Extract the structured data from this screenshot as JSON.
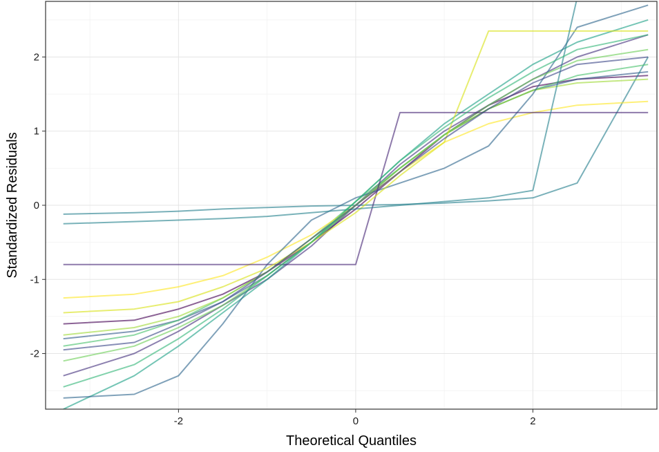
{
  "chart_data": {
    "type": "line",
    "title": "",
    "xlabel": "Theoretical Quantiles",
    "ylabel": "Standardized Residuals",
    "xlim": [
      -3.5,
      3.4
    ],
    "ylim": [
      -2.75,
      2.75
    ],
    "x_ticks": [
      -2,
      0,
      2
    ],
    "x_tick_labels": [
      "-2",
      "0",
      "2"
    ],
    "y_ticks": [
      -2,
      -1,
      0,
      1,
      2
    ],
    "y_tick_labels": [
      "-2",
      "-1",
      "0",
      "1",
      "2"
    ],
    "grid": true,
    "legend": "none",
    "description_of_series": "Quantile-quantile traces of standardized residuals versus theoretical normal quantiles; many series, colored along a viridis palette (purple to yellow).",
    "series": [
      {
        "name": "s1",
        "color": "#440154",
        "x": [
          -3.3,
          -2.5,
          -2,
          -1.5,
          -1,
          -0.5,
          0,
          0.5,
          1,
          1.5,
          2,
          2.5,
          3.3
        ],
        "y": [
          -1.6,
          -1.55,
          -1.4,
          -1.2,
          -0.9,
          -0.5,
          -0.05,
          0.45,
          0.95,
          1.35,
          1.6,
          1.7,
          1.75
        ]
      },
      {
        "name": "s2",
        "color": "#46327e",
        "x": [
          -3.3,
          -2.5,
          -2,
          -1.5,
          -1,
          -0.5,
          0,
          0.5,
          1,
          1.5,
          2,
          2.5,
          3.3
        ],
        "y": [
          -2.3,
          -2.0,
          -1.7,
          -1.35,
          -1.0,
          -0.55,
          0.0,
          0.55,
          1.0,
          1.35,
          1.7,
          2.0,
          2.3
        ]
      },
      {
        "name": "s3",
        "color": "#365c8d",
        "x": [
          -3.3,
          -2.5,
          -2,
          -1.5,
          -1,
          -0.5,
          0,
          0.5,
          1,
          1.5,
          2,
          2.5,
          3.3
        ],
        "y": [
          -1.8,
          -1.7,
          -1.55,
          -1.3,
          -0.95,
          -0.5,
          0.0,
          0.5,
          0.95,
          1.3,
          1.55,
          1.7,
          1.8
        ]
      },
      {
        "name": "s4",
        "color": "#277f8e",
        "x": [
          -3.3,
          -2.5,
          -2,
          -1.5,
          -1,
          -0.5,
          0,
          0.5,
          1,
          1.5,
          2,
          2.5,
          3.3
        ],
        "y": [
          -0.12,
          -0.1,
          -0.08,
          -0.05,
          -0.03,
          -0.01,
          0.0,
          0.01,
          0.03,
          0.06,
          0.1,
          0.3,
          2.0
        ]
      },
      {
        "name": "s5",
        "color": "#1fa187",
        "x": [
          -3.3,
          -2.5,
          -2,
          -1.5,
          -1,
          -0.5,
          0,
          0.5,
          1,
          1.5,
          2,
          2.5,
          3.3
        ],
        "y": [
          -2.75,
          -2.3,
          -1.9,
          -1.45,
          -1.0,
          -0.5,
          0.05,
          0.6,
          1.1,
          1.5,
          1.9,
          2.2,
          2.5
        ]
      },
      {
        "name": "s6",
        "color": "#4ac16d",
        "x": [
          -3.3,
          -2.5,
          -2,
          -1.5,
          -1,
          -0.5,
          0,
          0.5,
          1,
          1.5,
          2,
          2.5,
          3.3
        ],
        "y": [
          -1.9,
          -1.75,
          -1.55,
          -1.25,
          -0.9,
          -0.45,
          0.05,
          0.5,
          0.95,
          1.3,
          1.55,
          1.75,
          1.9
        ]
      },
      {
        "name": "s7",
        "color": "#a0da39",
        "x": [
          -3.3,
          -2.5,
          -2,
          -1.5,
          -1,
          -0.5,
          0,
          0.5,
          1,
          1.5,
          2,
          2.5,
          3.3
        ],
        "y": [
          -1.75,
          -1.65,
          -1.5,
          -1.25,
          -0.9,
          -0.45,
          0.0,
          0.5,
          0.95,
          1.3,
          1.55,
          1.65,
          1.7
        ]
      },
      {
        "name": "s8",
        "color": "#fde725",
        "x": [
          -3.3,
          -2.5,
          -2,
          -1.5,
          -1,
          -0.5,
          0,
          0.5,
          1,
          1.5,
          2,
          2.5,
          3.3
        ],
        "y": [
          -1.25,
          -1.2,
          -1.1,
          -0.95,
          -0.7,
          -0.4,
          0.0,
          0.45,
          0.85,
          1.1,
          1.25,
          1.35,
          1.4
        ]
      },
      {
        "name": "s9",
        "color": "#31688e",
        "x": [
          -3.3,
          -2.5,
          -2,
          -1.5,
          -1,
          -0.5,
          0,
          0.5,
          1,
          1.5,
          2,
          2.5,
          3.3
        ],
        "y": [
          -2.6,
          -2.55,
          -2.3,
          -1.6,
          -0.8,
          -0.2,
          0.1,
          0.3,
          0.5,
          0.8,
          1.5,
          2.4,
          2.7
        ]
      },
      {
        "name": "s10",
        "color": "#6ece58",
        "x": [
          -3.3,
          -2.5,
          -2,
          -1.5,
          -1,
          -0.5,
          0,
          0.5,
          1,
          1.5,
          2,
          2.5,
          3.3
        ],
        "y": [
          -2.1,
          -1.9,
          -1.65,
          -1.35,
          -0.95,
          -0.5,
          0.0,
          0.5,
          0.95,
          1.35,
          1.7,
          1.95,
          2.1
        ]
      },
      {
        "name": "s11",
        "color": "#482878",
        "x": [
          -3.3,
          -2.5,
          -2,
          -1.5,
          -1,
          -0.5,
          0,
          0.5,
          1,
          1.5,
          2,
          2.5,
          3.3
        ],
        "y": [
          -0.8,
          -0.8,
          -0.8,
          -0.8,
          -0.8,
          -0.8,
          -0.8,
          1.25,
          1.25,
          1.25,
          1.25,
          1.25,
          1.25
        ]
      },
      {
        "name": "s12",
        "color": "#d8e219",
        "x": [
          -3.3,
          -2.5,
          -2,
          -1.5,
          -1,
          -0.5,
          0,
          0.5,
          1,
          1.5,
          2,
          2.5,
          3.3
        ],
        "y": [
          -1.45,
          -1.4,
          -1.3,
          -1.1,
          -0.85,
          -0.5,
          -0.1,
          0.4,
          0.85,
          2.35,
          2.35,
          2.35,
          2.35
        ]
      },
      {
        "name": "s13",
        "color": "#26828e",
        "x": [
          -3.3,
          -2.5,
          -2,
          -1.5,
          -1,
          -0.5,
          0,
          0.5,
          1,
          1.5,
          2,
          2.5,
          3.3
        ],
        "y": [
          -0.25,
          -0.22,
          -0.2,
          -0.18,
          -0.15,
          -0.1,
          -0.05,
          0.0,
          0.05,
          0.1,
          0.2,
          2.8,
          2.8
        ]
      },
      {
        "name": "s14",
        "color": "#3e4989",
        "x": [
          -3.3,
          -2.5,
          -2,
          -1.5,
          -1,
          -0.5,
          0,
          0.5,
          1,
          1.5,
          2,
          2.5,
          3.3
        ],
        "y": [
          -1.95,
          -1.85,
          -1.6,
          -1.3,
          -0.9,
          -0.45,
          0.0,
          0.45,
          0.9,
          1.3,
          1.65,
          1.9,
          2.0
        ]
      },
      {
        "name": "s15",
        "color": "#35b779",
        "x": [
          -3.3,
          -2.5,
          -2,
          -1.5,
          -1,
          -0.5,
          0,
          0.5,
          1,
          1.5,
          2,
          2.5,
          3.3
        ],
        "y": [
          -2.45,
          -2.15,
          -1.8,
          -1.4,
          -0.95,
          -0.5,
          0.05,
          0.6,
          1.05,
          1.45,
          1.8,
          2.1,
          2.3
        ]
      }
    ]
  }
}
